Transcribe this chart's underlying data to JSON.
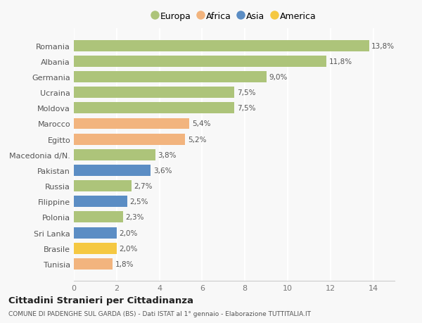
{
  "categories": [
    "Tunisia",
    "Brasile",
    "Sri Lanka",
    "Polonia",
    "Filippine",
    "Russia",
    "Pakistan",
    "Macedonia d/N.",
    "Egitto",
    "Marocco",
    "Moldova",
    "Ucraina",
    "Germania",
    "Albania",
    "Romania"
  ],
  "values": [
    1.8,
    2.0,
    2.0,
    2.3,
    2.5,
    2.7,
    3.6,
    3.8,
    5.2,
    5.4,
    7.5,
    7.5,
    9.0,
    11.8,
    13.8
  ],
  "labels": [
    "1,8%",
    "2,0%",
    "2,0%",
    "2,3%",
    "2,5%",
    "2,7%",
    "3,6%",
    "3,8%",
    "5,2%",
    "5,4%",
    "7,5%",
    "7,5%",
    "9,0%",
    "11,8%",
    "13,8%"
  ],
  "continents": [
    "Africa",
    "America",
    "Asia",
    "Europa",
    "Asia",
    "Europa",
    "Asia",
    "Europa",
    "Africa",
    "Africa",
    "Europa",
    "Europa",
    "Europa",
    "Europa",
    "Europa"
  ],
  "colors": {
    "Europa": "#adc47a",
    "Africa": "#f2b47e",
    "Asia": "#5b8dc4",
    "America": "#f5c842"
  },
  "legend_order": [
    "Europa",
    "Africa",
    "Asia",
    "America"
  ],
  "xlim": [
    0,
    15
  ],
  "xticks": [
    0,
    2,
    4,
    6,
    8,
    10,
    12,
    14
  ],
  "title": "Cittadini Stranieri per Cittadinanza",
  "subtitle": "COMUNE DI PADENGHE SUL GARDA (BS) - Dati ISTAT al 1° gennaio - Elaborazione TUTTITALIA.IT",
  "background_color": "#f8f8f8",
  "grid_color": "#ffffff",
  "bar_height": 0.72
}
